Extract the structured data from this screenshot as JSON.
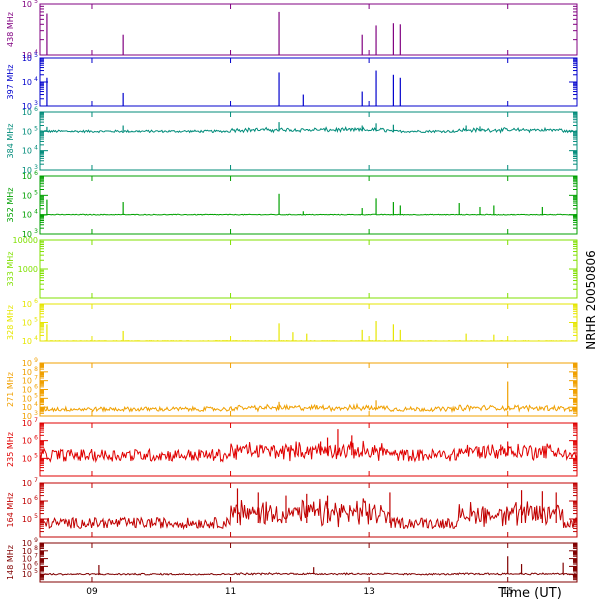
{
  "chart_data": {
    "type": "line",
    "side_label": "NRHR 20050806",
    "xlabel": "Time (UT)",
    "xlim": [
      8.25,
      16.0
    ],
    "x_ticks": [
      {
        "value": 9,
        "label": "09"
      },
      {
        "value": 11,
        "label": "11"
      },
      {
        "value": 13,
        "label": "13"
      },
      {
        "value": 15,
        "label": "15"
      }
    ],
    "panels": [
      {
        "name": "438 MHz",
        "color": "#800080",
        "ymin": 10000,
        "ymax": 100000,
        "yticks": [
          {
            "v": 10000,
            "label": "10",
            "exp": "4"
          },
          {
            "v": 100000,
            "label": "10",
            "exp": "5"
          }
        ],
        "baseline": 10000,
        "noise": 0.0,
        "spread": 0.0,
        "spikes": [
          [
            8.35,
            65000
          ],
          [
            9.45,
            25000
          ],
          [
            11.7,
            70000
          ],
          [
            12.9,
            25000
          ],
          [
            13.1,
            38000
          ],
          [
            13.35,
            42000
          ],
          [
            13.45,
            40000
          ]
        ]
      },
      {
        "name": "397 MHz",
        "color": "#0000cc",
        "ymin": 1000,
        "ymax": 100000,
        "yticks": [
          {
            "v": 1000,
            "label": "10",
            "exp": "3"
          },
          {
            "v": 10000,
            "label": "10",
            "exp": "4"
          },
          {
            "v": 100000,
            "label": "10",
            "exp": "5"
          }
        ],
        "baseline": 1000,
        "noise": 0.0,
        "spread": 0.0,
        "spikes": [
          [
            8.35,
            15000
          ],
          [
            9.45,
            3500
          ],
          [
            11.7,
            25000
          ],
          [
            12.05,
            3000
          ],
          [
            12.9,
            4000
          ],
          [
            13.1,
            30000
          ],
          [
            13.35,
            20000
          ],
          [
            13.45,
            15000
          ]
        ]
      },
      {
        "name": "384 MHz",
        "color": "#008b7a",
        "ymin": 1000,
        "ymax": 1000000,
        "yticks": [
          {
            "v": 1000,
            "label": "10",
            "exp": "3"
          },
          {
            "v": 10000,
            "label": "10",
            "exp": "4"
          },
          {
            "v": 100000,
            "label": "10",
            "exp": "5"
          },
          {
            "v": 1000000,
            "label": "10",
            "exp": "6"
          }
        ],
        "baseline": 100000,
        "noise": 0.06,
        "spread": 0.15,
        "spikes": [
          [
            8.35,
            170000
          ],
          [
            9.45,
            200000
          ],
          [
            11.7,
            300000
          ],
          [
            12.9,
            200000
          ],
          [
            13.1,
            260000
          ],
          [
            13.35,
            220000
          ],
          [
            14.4,
            200000
          ],
          [
            14.6,
            180000
          ]
        ]
      },
      {
        "name": "352 MHz",
        "color": "#00a000",
        "ymin": 1000,
        "ymax": 1000000,
        "yticks": [
          {
            "v": 1000,
            "label": "10",
            "exp": "3"
          },
          {
            "v": 10000,
            "label": "10",
            "exp": "4"
          },
          {
            "v": 100000,
            "label": "10",
            "exp": "5"
          },
          {
            "v": 1000000,
            "label": "10",
            "exp": "6"
          }
        ],
        "baseline": 10000,
        "noise": 0.02,
        "spread": 0.0,
        "spikes": [
          [
            8.35,
            60000
          ],
          [
            9.45,
            45000
          ],
          [
            11.7,
            120000
          ],
          [
            12.05,
            15000
          ],
          [
            12.9,
            22000
          ],
          [
            13.1,
            70000
          ],
          [
            13.35,
            45000
          ],
          [
            13.45,
            30000
          ],
          [
            14.3,
            40000
          ],
          [
            14.6,
            25000
          ],
          [
            14.8,
            30000
          ],
          [
            15.5,
            25000
          ]
        ]
      },
      {
        "name": "333 MHz",
        "color": "#80e000",
        "ymin": 100,
        "ymax": 10000,
        "yticks": [
          {
            "v": 1000,
            "label": "1000",
            "exp": ""
          },
          {
            "v": 10000,
            "label": "10000",
            "exp": ""
          }
        ],
        "baseline": 100,
        "noise": 0.0,
        "spread": 0.0,
        "spikes": []
      },
      {
        "name": "328 MHz",
        "color": "#e6e600",
        "ymin": 10000,
        "ymax": 1000000,
        "yticks": [
          {
            "v": 10000,
            "label": "10",
            "exp": "4"
          },
          {
            "v": 100000,
            "label": "10",
            "exp": "5"
          },
          {
            "v": 1000000,
            "label": "10",
            "exp": "6"
          }
        ],
        "baseline": 10000,
        "noise": 0.02,
        "spread": 0.0,
        "spikes": [
          [
            8.35,
            80000
          ],
          [
            9.45,
            35000
          ],
          [
            11.7,
            90000
          ],
          [
            11.9,
            30000
          ],
          [
            12.1,
            25000
          ],
          [
            12.9,
            40000
          ],
          [
            13.1,
            120000
          ],
          [
            13.35,
            80000
          ],
          [
            13.45,
            40000
          ],
          [
            14.4,
            25000
          ],
          [
            14.8,
            22000
          ]
        ]
      },
      {
        "name": "271 MHz",
        "color": "#f0a000",
        "ymin": 1000,
        "ymax": 1000000000,
        "yticks": [
          {
            "v": 1000,
            "label": "10",
            "exp": "3"
          },
          {
            "v": 10000,
            "label": "10",
            "exp": "4"
          },
          {
            "v": 100000,
            "label": "10",
            "exp": "5"
          },
          {
            "v": 1000000,
            "label": "10",
            "exp": "6"
          },
          {
            "v": 10000000,
            "label": "10",
            "exp": "7"
          },
          {
            "v": 100000000,
            "label": "10",
            "exp": "8"
          },
          {
            "v": 1000000000,
            "label": "10",
            "exp": "9"
          }
        ],
        "baseline": 6000,
        "noise": 0.25,
        "spread": 0.3,
        "spikes": [
          [
            15.0,
            8000000
          ],
          [
            11.7,
            40000
          ],
          [
            13.1,
            60000
          ]
        ]
      },
      {
        "name": "235 MHz",
        "color": "#e00000",
        "ymin": 10000,
        "ymax": 10000000,
        "yticks": [
          {
            "v": 100000,
            "label": "10",
            "exp": "5"
          },
          {
            "v": 1000000,
            "label": "10",
            "exp": "6"
          },
          {
            "v": 10000000,
            "label": "10",
            "exp": "7"
          }
        ],
        "baseline": 150000,
        "noise": 0.35,
        "spread": 0.5,
        "spikes": [
          [
            12.55,
            4500000
          ],
          [
            12.4,
            1500000
          ],
          [
            12.75,
            2000000
          ],
          [
            12.3,
            900000
          ],
          [
            15.0,
            900000
          ],
          [
            14.9,
            600000
          ]
        ]
      },
      {
        "name": "164 MHz",
        "color": "#c00000",
        "ymin": 10000,
        "ymax": 10000000,
        "yticks": [
          {
            "v": 100000,
            "label": "10",
            "exp": "5"
          },
          {
            "v": 1000000,
            "label": "10",
            "exp": "6"
          },
          {
            "v": 10000000,
            "label": "10",
            "exp": "7"
          }
        ],
        "baseline": 60000,
        "noise": 0.3,
        "spread": 1.1,
        "spikes": [
          [
            11.1,
            5000000
          ],
          [
            11.4,
            3000000
          ],
          [
            11.8,
            2000000
          ],
          [
            12.1,
            2500000
          ],
          [
            12.4,
            2000000
          ],
          [
            13.3,
            3000000
          ],
          [
            15.2,
            4000000
          ],
          [
            15.5,
            3500000
          ],
          [
            15.7,
            3000000
          ]
        ]
      },
      {
        "name": "148 MHz",
        "color": "#800000",
        "ymin": 10000,
        "ymax": 1000000000,
        "yticks": [
          {
            "v": 100000,
            "label": "10",
            "exp": "5"
          },
          {
            "v": 1000000,
            "label": "10",
            "exp": "6"
          },
          {
            "v": 10000000,
            "label": "10",
            "exp": "7"
          },
          {
            "v": 100000000,
            "label": "10",
            "exp": "8"
          },
          {
            "v": 1000000000,
            "label": "10",
            "exp": "9"
          }
        ],
        "baseline": 100000,
        "noise": 0.1,
        "spread": 0.1,
        "spikes": [
          [
            9.1,
            1500000
          ],
          [
            15.0,
            20000000
          ],
          [
            15.2,
            2000000
          ],
          [
            12.2,
            800000
          ],
          [
            15.8,
            3000000
          ]
        ]
      }
    ]
  }
}
